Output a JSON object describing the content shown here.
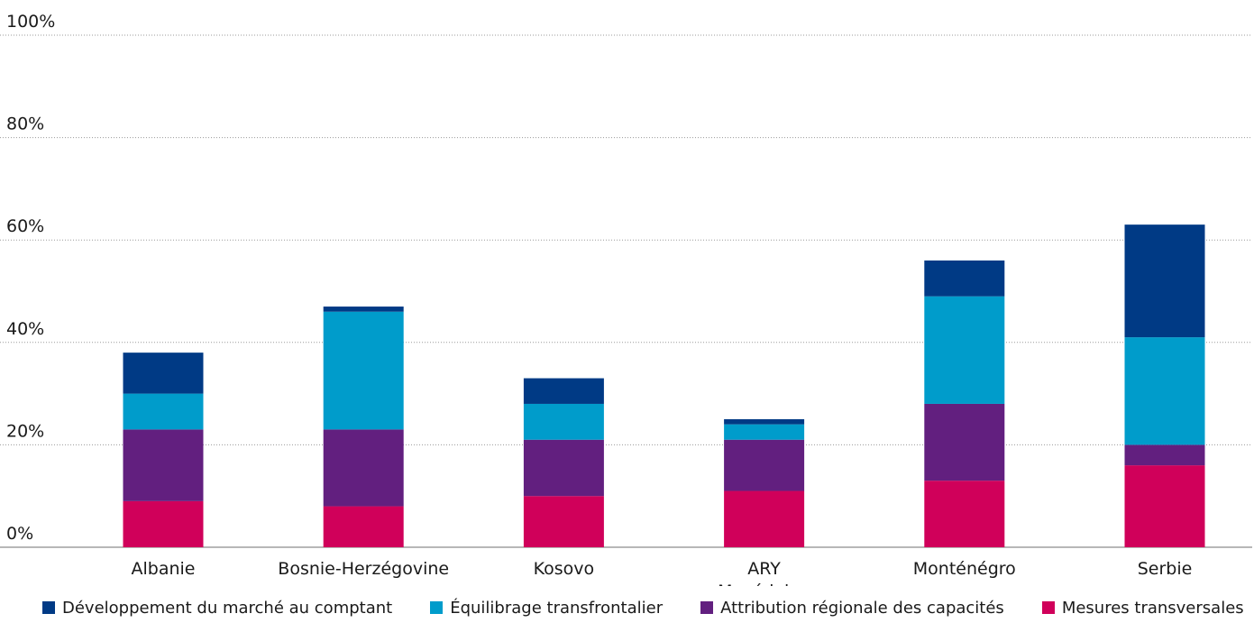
{
  "chart_data": {
    "type": "bar",
    "stacked": true,
    "title": "",
    "xlabel": "",
    "ylabel": "",
    "categories": [
      "Albanie",
      "Bosnie-Herzégovine",
      "Kosovo",
      "ARY\nMacédoine",
      "Monténégro",
      "Serbie"
    ],
    "ylim": [
      0,
      100
    ],
    "yticks": [
      0,
      20,
      40,
      60,
      80,
      100
    ],
    "ytick_labels": [
      "0%",
      "20%",
      "40%",
      "60%",
      "80%",
      "100%"
    ],
    "grid": true,
    "legend_position": "bottom",
    "series": [
      {
        "name": "Mesures transversales",
        "color": "#d0005a",
        "values": [
          9,
          8,
          10,
          11,
          13,
          16
        ]
      },
      {
        "name": "Attribution régionale des capacités",
        "color": "#621f7f",
        "values": [
          14,
          15,
          11,
          10,
          15,
          4
        ]
      },
      {
        "name": "Équilibrage transfrontalier",
        "color": "#009ccb",
        "values": [
          7,
          23,
          7,
          3,
          21,
          21
        ]
      },
      {
        "name": "Développement du marché au comptant",
        "color": "#003a85",
        "values": [
          8,
          1,
          5,
          1,
          7,
          22
        ]
      }
    ],
    "legend_order": [
      "Développement du marché au comptant",
      "Équilibrage transfrontalier",
      "Attribution régionale des capacités",
      "Mesures transversales"
    ]
  }
}
